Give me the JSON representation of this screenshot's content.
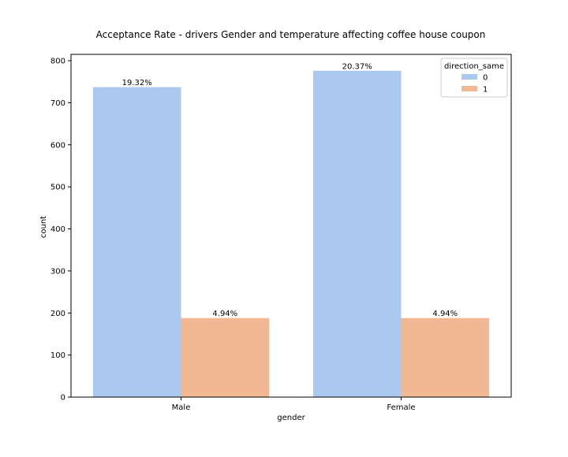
{
  "chart_data": {
    "type": "bar",
    "title": "Acceptance Rate - drivers Gender and temperature affecting coffee house coupon",
    "xlabel": "gender",
    "ylabel": "count",
    "categories": [
      "Male",
      "Female"
    ],
    "ylim": [
      0,
      815
    ],
    "yticks": [
      0,
      100,
      200,
      300,
      400,
      500,
      600,
      700,
      800
    ],
    "legend": {
      "title": "direction_same",
      "placement": "top-right"
    },
    "series": [
      {
        "name": "0",
        "color": "#abc9ef",
        "values": [
          737,
          776
        ],
        "labels": [
          "19.32%",
          "20.37%"
        ]
      },
      {
        "name": "1",
        "color": "#f1b893",
        "values": [
          188,
          188
        ],
        "labels": [
          "4.94%",
          "4.94%"
        ]
      }
    ]
  }
}
